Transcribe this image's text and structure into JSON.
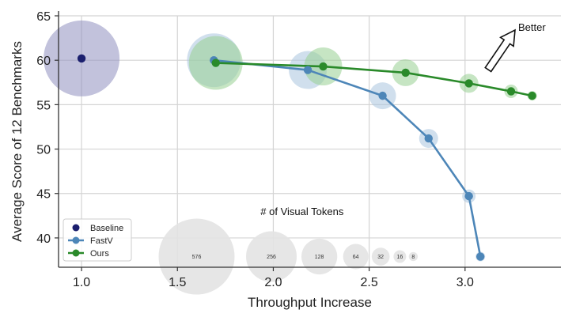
{
  "chart_data": {
    "type": "scatter",
    "xlabel": "Throughput Increase",
    "ylabel": "Average Score of 12 Benchmarks",
    "xlim": [
      0.88,
      3.5
    ],
    "ylim": [
      36.7,
      65
    ],
    "xticks": [
      1.0,
      1.5,
      2.0,
      2.5,
      3.0
    ],
    "xtick_labels": [
      "1.0",
      "1.5",
      "2.0",
      "2.5",
      "3.0"
    ],
    "yticks": [
      40,
      45,
      50,
      55,
      60,
      65
    ],
    "ytick_labels": [
      "40",
      "45",
      "50",
      "55",
      "60",
      "65"
    ],
    "grid": true,
    "legend_position": "lower-left",
    "series": [
      {
        "name": "Baseline",
        "color": "#1b1f6e",
        "bubble_color": "#8f8fc0",
        "marker": "circle",
        "line": false,
        "points": [
          {
            "x": 1.0,
            "y": 60.2,
            "tokens": 576
          }
        ]
      },
      {
        "name": "FastV",
        "color": "#4d86b8",
        "bubble_color": "#a9c4df",
        "marker": "circle",
        "line": true,
        "points": [
          {
            "x": 1.69,
            "y": 60.0,
            "tokens": 288
          },
          {
            "x": 2.18,
            "y": 58.9,
            "tokens": 144
          },
          {
            "x": 2.57,
            "y": 56.0,
            "tokens": 72
          },
          {
            "x": 2.81,
            "y": 51.2,
            "tokens": 36
          },
          {
            "x": 3.02,
            "y": 44.7,
            "tokens": 18
          },
          {
            "x": 3.08,
            "y": 37.9,
            "tokens": 9
          }
        ]
      },
      {
        "name": "Ours",
        "color": "#2a8a2a",
        "bubble_color": "#98cf92",
        "marker": "circle",
        "line": true,
        "points": [
          {
            "x": 1.7,
            "y": 59.7,
            "tokens": 288
          },
          {
            "x": 2.26,
            "y": 59.3,
            "tokens": 144
          },
          {
            "x": 2.69,
            "y": 58.6,
            "tokens": 72
          },
          {
            "x": 3.02,
            "y": 57.4,
            "tokens": 36
          },
          {
            "x": 3.24,
            "y": 56.5,
            "tokens": 18
          },
          {
            "x": 3.35,
            "y": 56.0,
            "tokens": 9
          }
        ]
      }
    ],
    "token_reference": {
      "title": "# of Visual Tokens",
      "y": 37.9,
      "items": [
        {
          "x": 1.6,
          "tokens": 576,
          "label": "576"
        },
        {
          "x": 1.99,
          "tokens": 256,
          "label": "256"
        },
        {
          "x": 2.24,
          "tokens": 128,
          "label": "128"
        },
        {
          "x": 2.43,
          "tokens": 64,
          "label": "64"
        },
        {
          "x": 2.56,
          "tokens": 32,
          "label": "32"
        },
        {
          "x": 2.66,
          "tokens": 16,
          "label": "16"
        },
        {
          "x": 2.73,
          "tokens": 8,
          "label": "8"
        }
      ],
      "color": "#e3e3e3"
    },
    "annotation": {
      "text": "Better",
      "x": 3.27,
      "y": 63.2
    }
  }
}
